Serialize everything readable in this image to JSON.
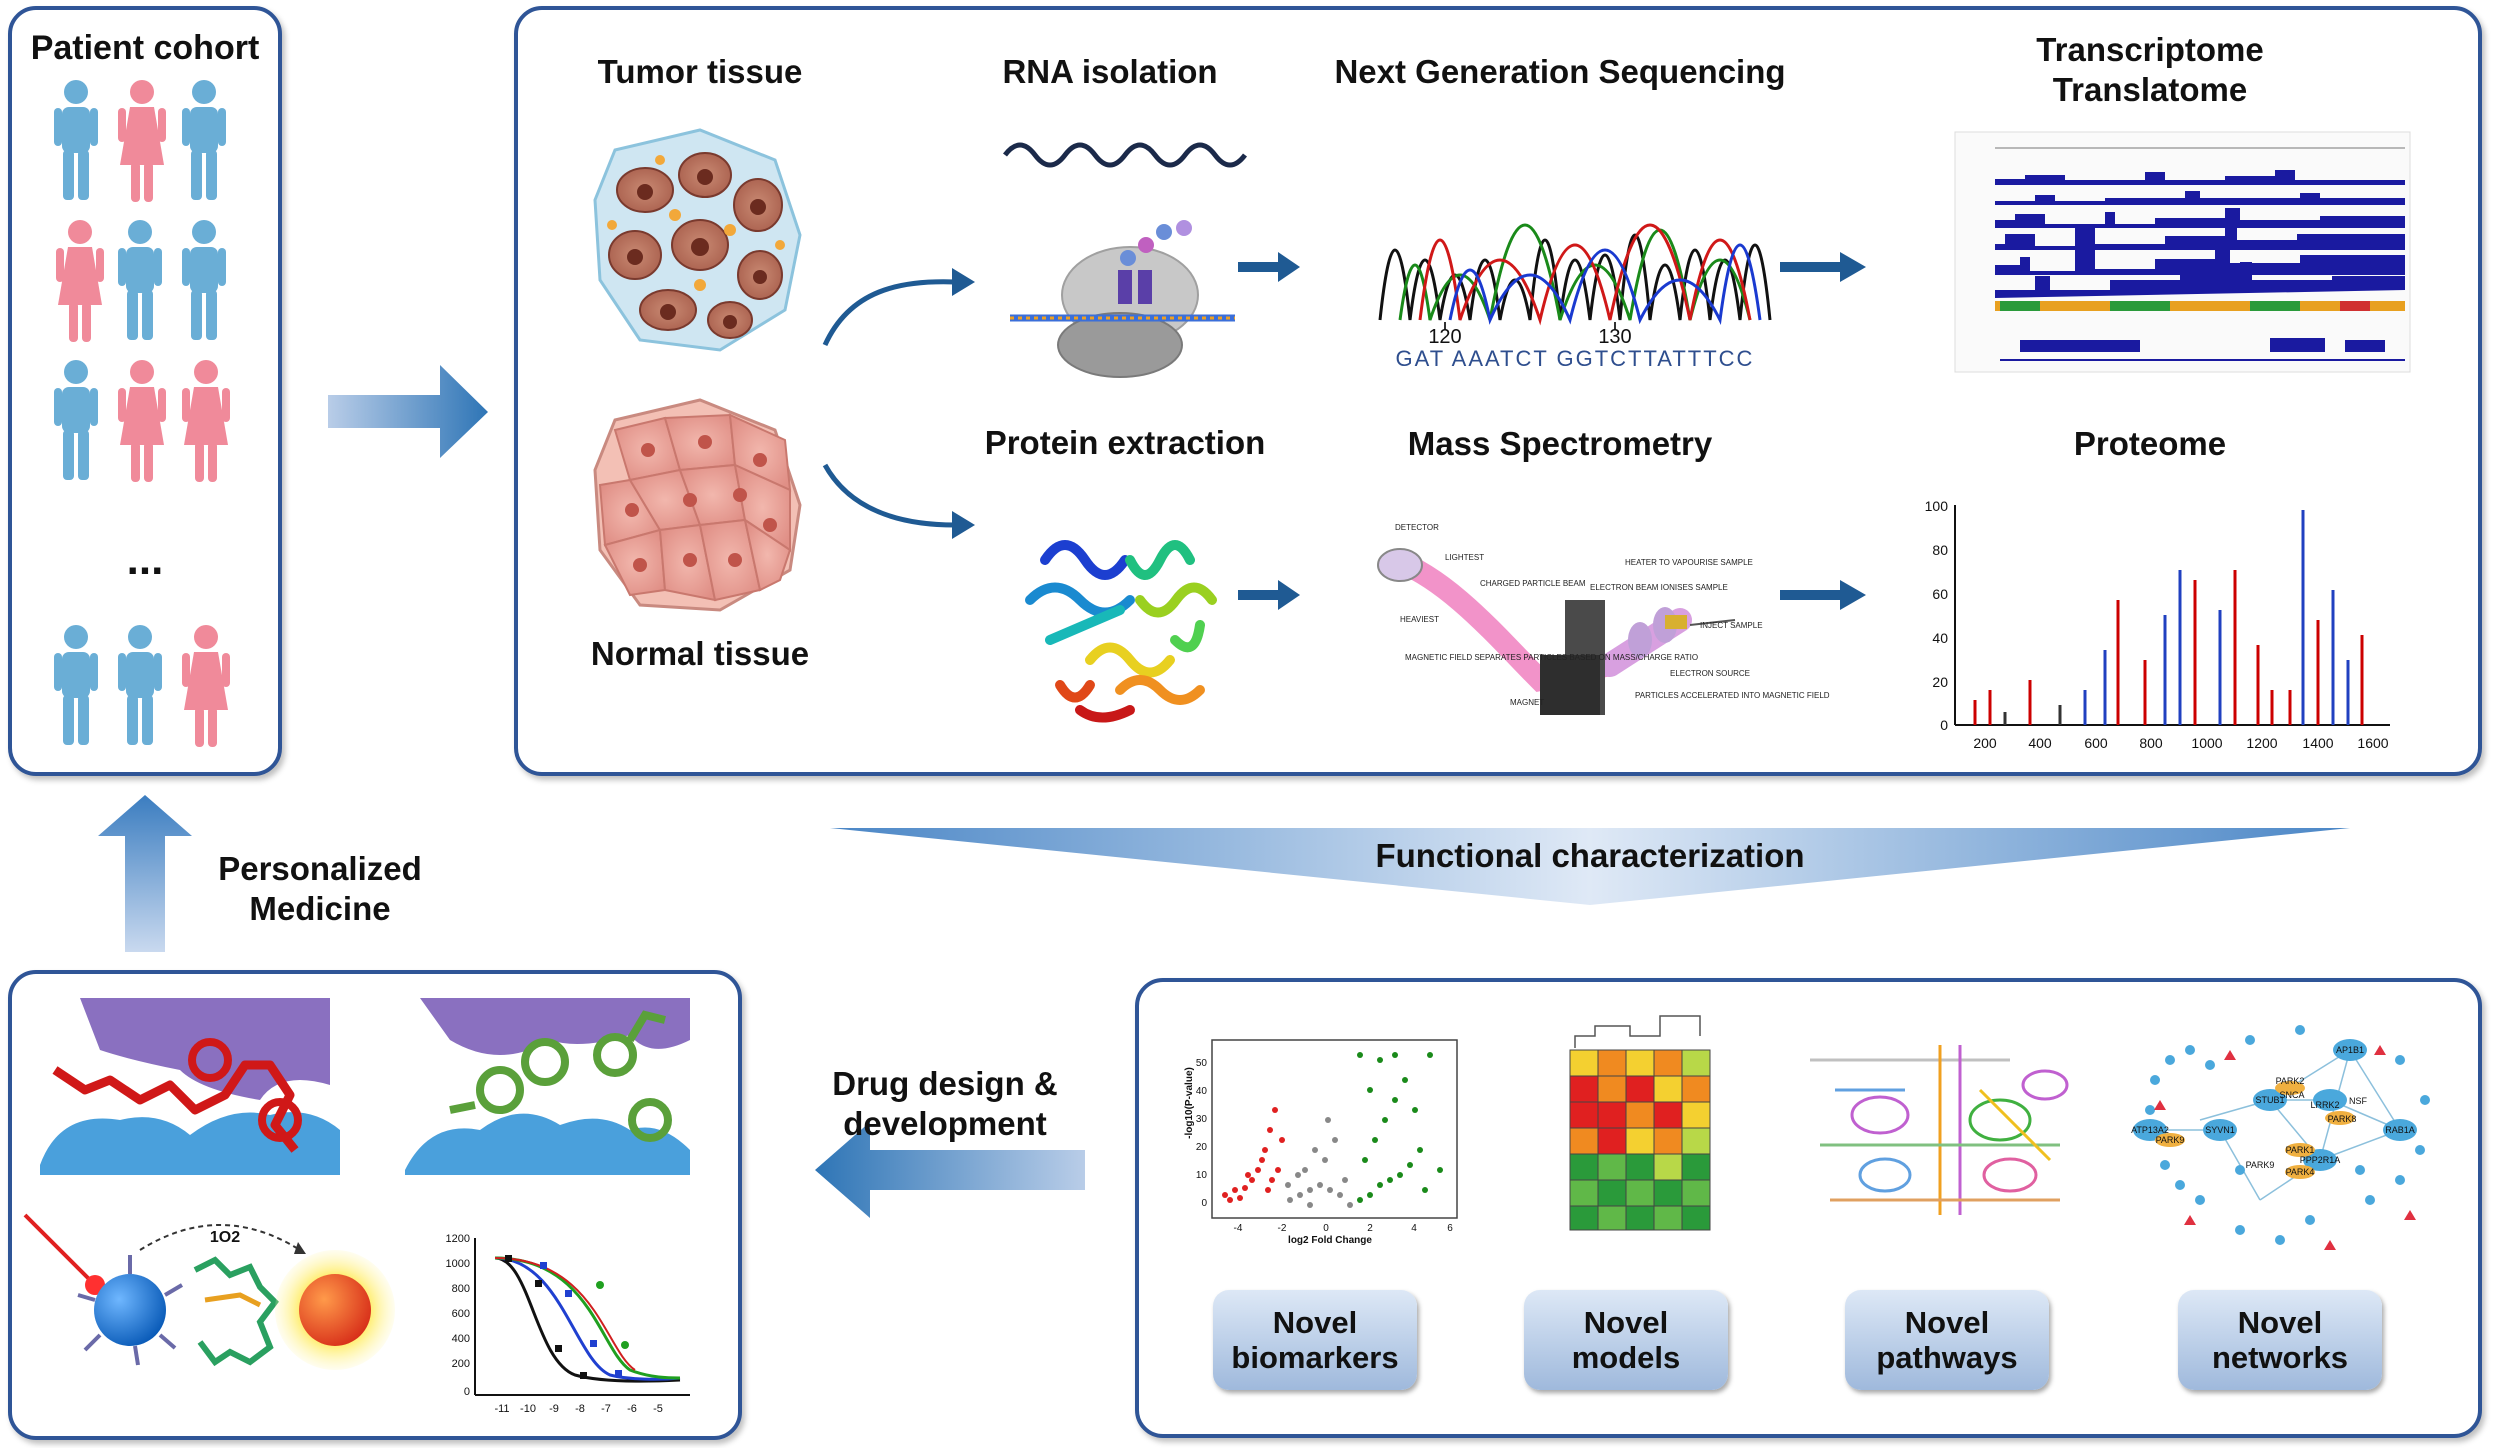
{
  "cohort": {
    "title": "Patient cohort",
    "ellipsis": "..."
  },
  "workflow": {
    "tumor": "Tumor tissue",
    "normal": "Normal tissue",
    "rna": "RNA isolation",
    "ngs": "Next Generation Sequencing",
    "transcriptome_l1": "Transcriptome",
    "transcriptome_l2": "Translatome",
    "protein": "Protein extraction",
    "ms": "Mass Spectrometry",
    "proteome": "Proteome",
    "seq_ticks": [
      "120",
      "130"
    ],
    "seq_letters": "GAT AAATCT GGTCTTATTTCC",
    "ms_labels": [
      "DETECTOR",
      "LIGHTEST",
      "HEAVIEST",
      "CHARGED PARTICLE BEAM",
      "HEATER TO VAPOURISE SAMPLE",
      "ELECTRON BEAM IONISES SAMPLE",
      "INJECT SAMPLE",
      "MAGNETIC FIELD SEPARATES PARTICLES BASED ON MASS/CHARGE RATIO",
      "ELECTRON SOURCE",
      "MAGNET",
      "PARTICLES ACCELERATED INTO MAGNETIC FIELD"
    ]
  },
  "proteome_chart": {
    "y_ticks": [
      "100",
      "80",
      "60",
      "40",
      "20",
      "0"
    ],
    "x_ticks": [
      "200",
      "400",
      "600",
      "800",
      "1000",
      "1200",
      "1400",
      "1600"
    ]
  },
  "functional": "Functional characterization",
  "personalized": {
    "l1": "Personalized",
    "l2": "Medicine"
  },
  "drug": {
    "l1": "Drug design &",
    "l2": "development"
  },
  "singlet_oxygen": "1O2",
  "dose_chart": {
    "y_ticks": [
      "1200",
      "1000",
      "800",
      "600",
      "400",
      "200",
      "0"
    ],
    "x_ticks": [
      "-11",
      "-10",
      "-9",
      "-8",
      "-7",
      "-6",
      "-5"
    ]
  },
  "volcano": {
    "ylabel": "-log10(P-value)",
    "xlabel": "log2 Fold Change",
    "y_ticks": [
      "50",
      "40",
      "30",
      "20",
      "10",
      "0"
    ],
    "x_ticks": [
      "-4",
      "-2",
      "0",
      "2",
      "4",
      "6"
    ]
  },
  "network_labels": [
    "AP1B1",
    "STUB1",
    "PARK2",
    "SNCA",
    "LRRK2",
    "NSF",
    "PARK8",
    "RAB1A",
    "ATP13A2",
    "PARK9",
    "SYVN1",
    "PARK1",
    "PARK4",
    "PPP2R1A",
    "PARK9"
  ],
  "outcomes": [
    {
      "l1": "Novel",
      "l2": "biomarkers"
    },
    {
      "l1": "Novel",
      "l2": "models"
    },
    {
      "l1": "Novel",
      "l2": "pathways"
    },
    {
      "l1": "Novel",
      "l2": "networks"
    }
  ],
  "colors": {
    "border": "#2f5597",
    "arrow": "#2e75b6",
    "person_blue": "#6aaed6",
    "person_pink": "#f08a9a"
  }
}
